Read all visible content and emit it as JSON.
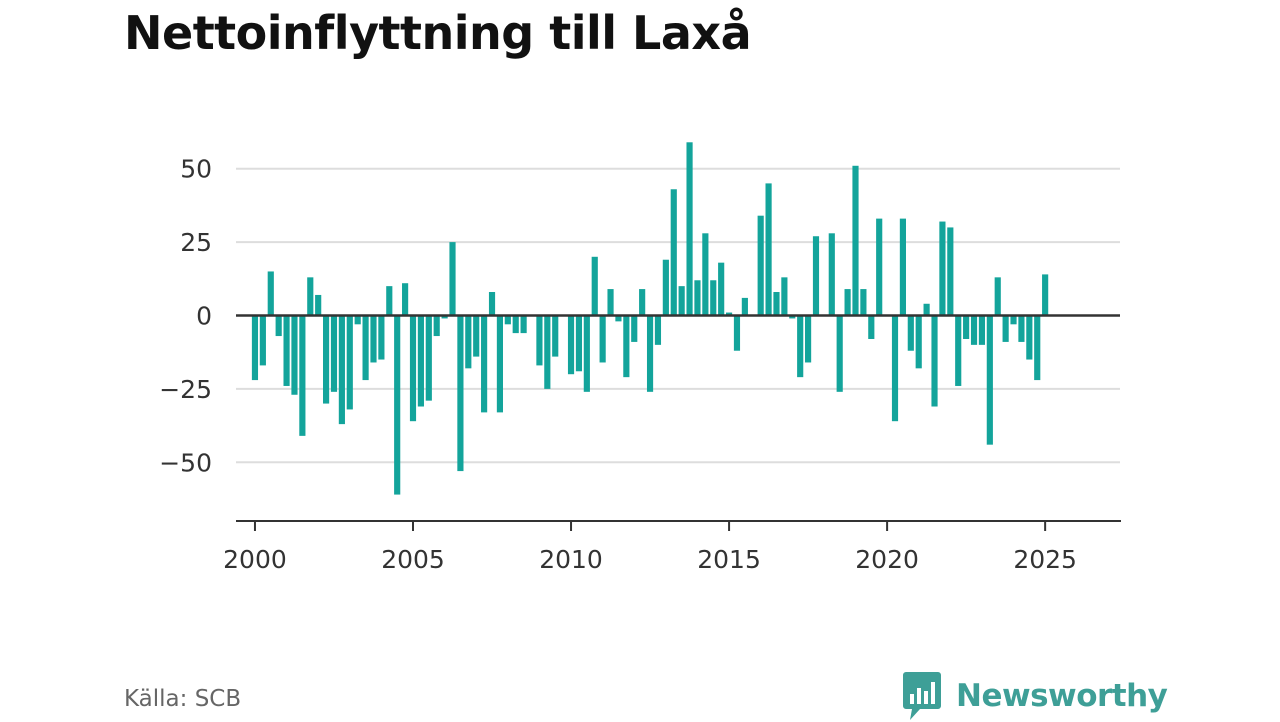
{
  "chart_data": {
    "type": "bar",
    "title": "Nettoinflyttning till Laxå",
    "xlabel": "",
    "ylabel": "",
    "x_start": 2000.0,
    "x_step": 0.25,
    "xlim": [
      1999.4,
      2027.4
    ],
    "ylim": [
      -70,
      70
    ],
    "x_ticks": [
      2000,
      2005,
      2010,
      2015,
      2020,
      2025
    ],
    "x_tick_labels": [
      "2000",
      "2005",
      "2010",
      "2015",
      "2020",
      "2025"
    ],
    "y_ticks": [
      50,
      25,
      0,
      -25,
      -50
    ],
    "y_tick_labels": [
      "50",
      "25",
      "0",
      "−25",
      "−50"
    ],
    "grid": true,
    "legend": "none",
    "values": [
      -22,
      -17,
      15,
      -7,
      -24,
      -27,
      -41,
      13,
      7,
      -30,
      -26,
      -37,
      -32,
      -3,
      -22,
      -16,
      -15,
      10,
      -61,
      11,
      -36,
      -31,
      -29,
      -7,
      -1,
      25,
      -53,
      -18,
      -14,
      -33,
      8,
      -33,
      -3,
      -6,
      -6,
      0,
      -17,
      -25,
      -14,
      0,
      -20,
      -19,
      -26,
      20,
      -16,
      9,
      -2,
      -21,
      -9,
      9,
      -26,
      -10,
      19,
      43,
      10,
      59,
      12,
      28,
      12,
      18,
      1,
      -12,
      6,
      0,
      34,
      45,
      8,
      13,
      -1,
      -21,
      -16,
      27,
      0,
      28,
      -26,
      9,
      51,
      9,
      -8,
      33,
      0,
      -36,
      33,
      -12,
      -18,
      4,
      -31,
      32,
      30,
      -24,
      -8,
      -10,
      -10,
      -44,
      13,
      -9,
      -3,
      -9,
      -15,
      -22,
      14
    ]
  },
  "colors": {
    "bar": "#13a49b",
    "zero_line": "#333333",
    "grid": "#dddddd",
    "axis": "#333333",
    "brand": "#3e9f97"
  },
  "source": "Källa: SCB",
  "brand": {
    "name": "Newsworthy",
    "icon": "bar-chart-speech-bubble-icon"
  }
}
